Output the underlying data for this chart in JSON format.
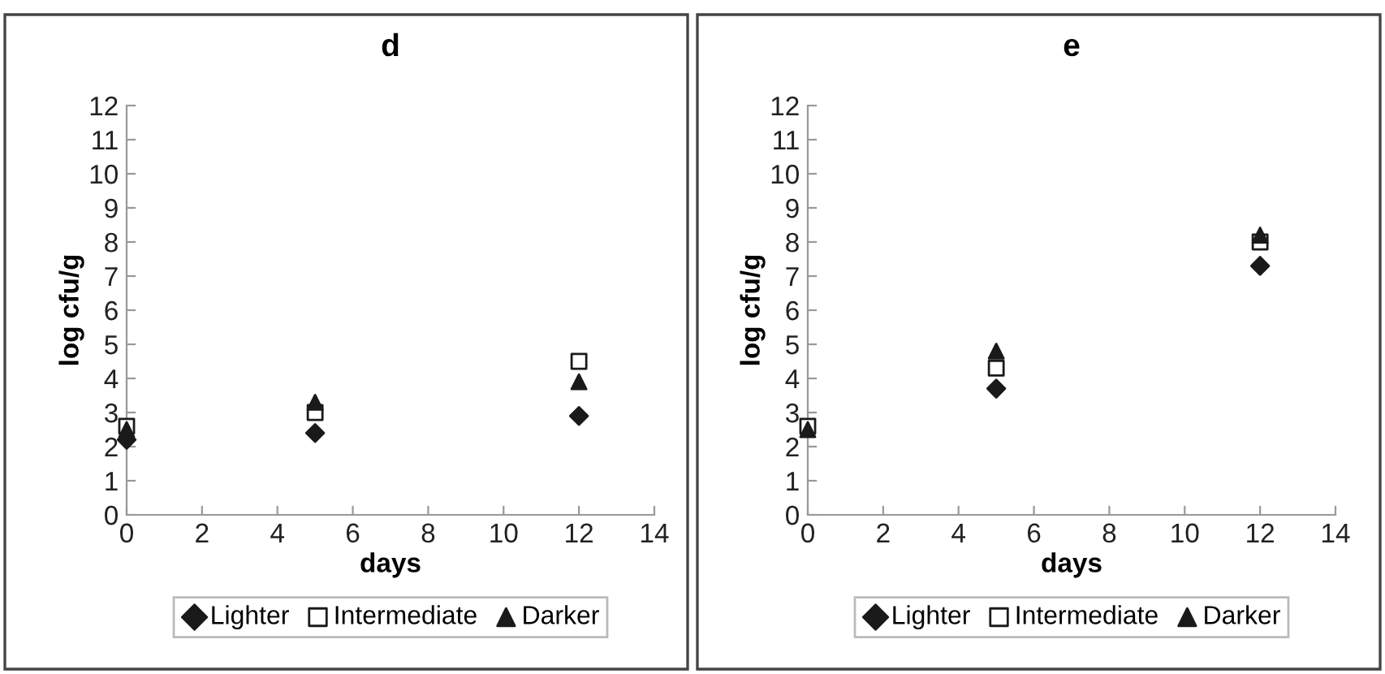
{
  "chart_data": [
    {
      "type": "scatter",
      "title": "d",
      "xlabel": "days",
      "ylabel": "log cfu/g",
      "xlim": [
        0,
        14
      ],
      "xticks": [
        0,
        2,
        4,
        6,
        8,
        10,
        12,
        14
      ],
      "ylim": [
        0,
        12
      ],
      "yticks": [
        0,
        1,
        2,
        3,
        4,
        5,
        6,
        7,
        8,
        9,
        10,
        11,
        12
      ],
      "grid": false,
      "legend": "bottom",
      "x": [
        0,
        5,
        12
      ],
      "series": [
        {
          "name": "Lighter",
          "color": "#1a1a1a",
          "marker": "diamond",
          "values": [
            2.2,
            2.4,
            2.9
          ]
        },
        {
          "name": "Intermediate",
          "color": "#ffffff",
          "marker": "square",
          "values": [
            2.6,
            3.0,
            4.5
          ]
        },
        {
          "name": "Darker",
          "color": "#1a1a1a",
          "marker": "triangle",
          "values": [
            2.5,
            3.3,
            3.9
          ]
        }
      ]
    },
    {
      "type": "scatter",
      "title": "e",
      "xlabel": "days",
      "ylabel": "log cfu/g",
      "xlim": [
        0,
        14
      ],
      "xticks": [
        0,
        2,
        4,
        6,
        8,
        10,
        12,
        14
      ],
      "ylim": [
        0,
        12
      ],
      "yticks": [
        0,
        1,
        2,
        3,
        4,
        5,
        6,
        7,
        8,
        9,
        10,
        11,
        12
      ],
      "grid": false,
      "legend": "bottom",
      "x": [
        0,
        5,
        12
      ],
      "series": [
        {
          "name": "Lighter",
          "color": "#1a1a1a",
          "marker": "diamond",
          "values": [
            null,
            3.7,
            7.3
          ]
        },
        {
          "name": "Intermediate",
          "color": "#ffffff",
          "marker": "square",
          "values": [
            2.6,
            4.3,
            8.0
          ]
        },
        {
          "name": "Darker",
          "color": "#1a1a1a",
          "marker": "triangle",
          "values": [
            2.5,
            4.8,
            8.2
          ]
        }
      ]
    }
  ]
}
